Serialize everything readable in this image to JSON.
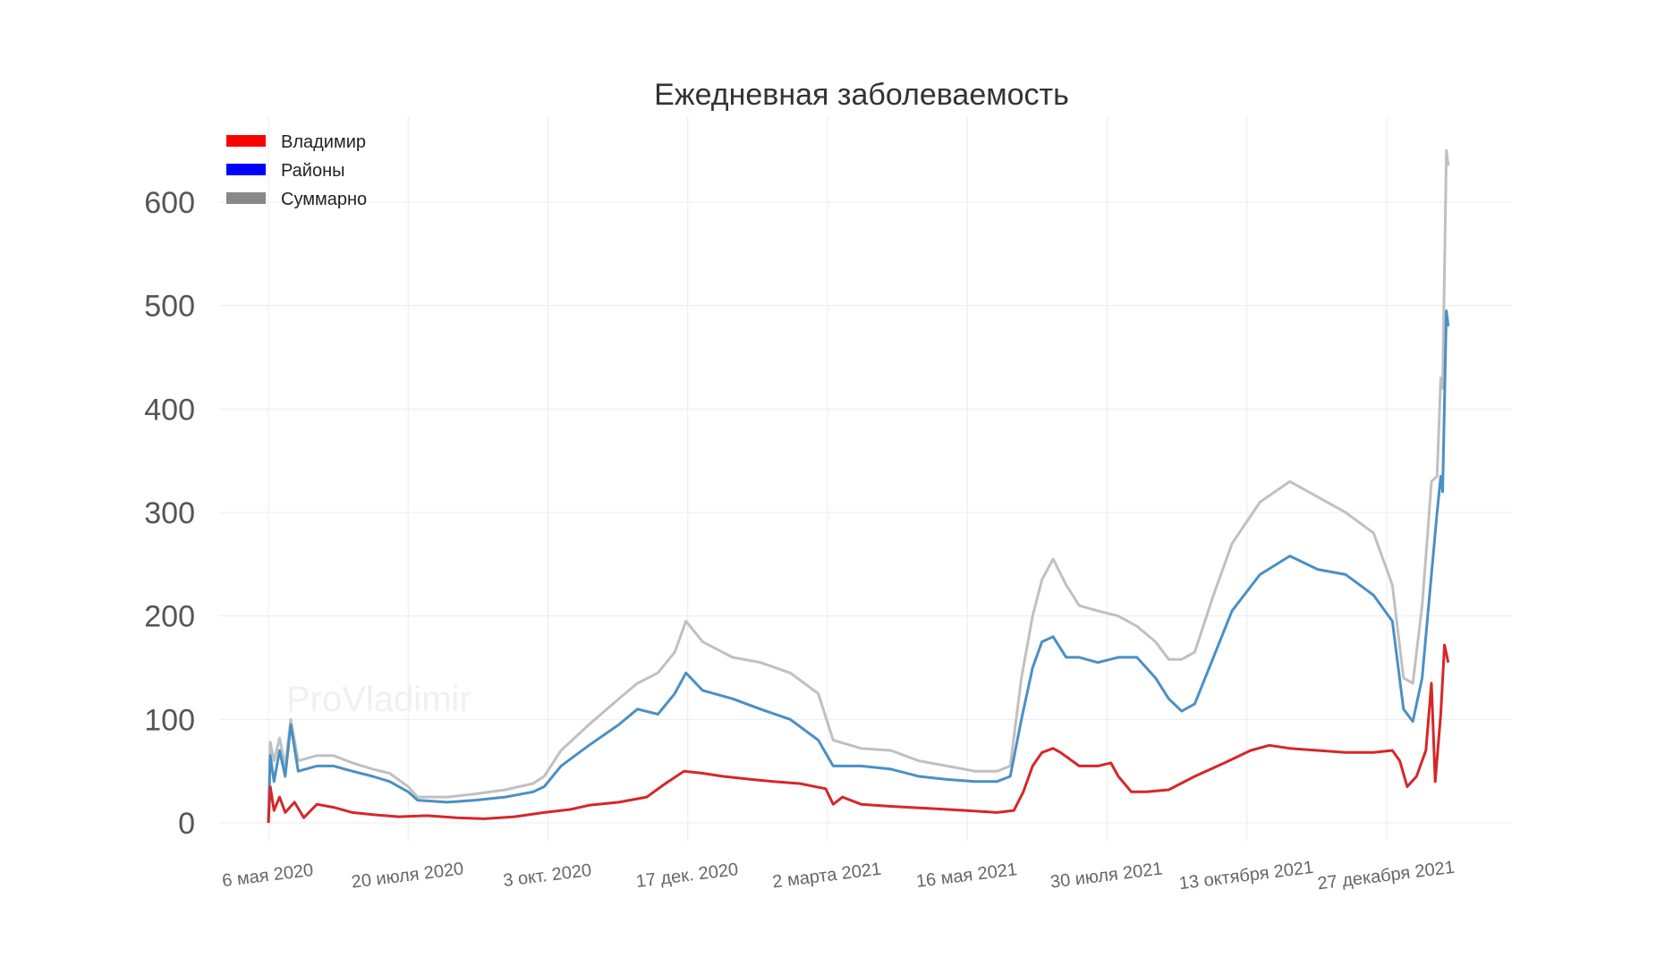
{
  "chart_data": {
    "type": "line",
    "title": "Ежедневная заболеваемость",
    "xlabel": "",
    "ylabel": "",
    "ylim": [
      -30,
      660
    ],
    "yticks": [
      0,
      100,
      200,
      300,
      400,
      500,
      600
    ],
    "xtick_labels": [
      "6 мая 2020",
      "20 июля 2020",
      "3 окт. 2020",
      "17 дек. 2020",
      "2 марта 2021",
      "16 мая 2021",
      "30 июля 2021",
      "13 октября 2021",
      "27 декабря 2021"
    ],
    "xtick_dates": [
      "2020-05-06",
      "2020-07-20",
      "2020-10-03",
      "2020-12-17",
      "2021-03-02",
      "2021-05-16",
      "2021-07-30",
      "2021-10-13",
      "2021-12-27"
    ],
    "xlim": [
      "2020-04-22",
      "2022-03-05"
    ],
    "grid": true,
    "legend_position": "top-left",
    "watermark": "ProVladimir",
    "series": [
      {
        "name": "Владимир",
        "color": "#d62728",
        "legend_color": "#ff0000",
        "points": [
          [
            "2020-05-06",
            0
          ],
          [
            "2020-05-07",
            35
          ],
          [
            "2020-05-09",
            12
          ],
          [
            "2020-05-12",
            25
          ],
          [
            "2020-05-15",
            10
          ],
          [
            "2020-05-20",
            20
          ],
          [
            "2020-05-25",
            5
          ],
          [
            "2020-06-01",
            18
          ],
          [
            "2020-06-10",
            15
          ],
          [
            "2020-06-20",
            10
          ],
          [
            "2020-07-01",
            8
          ],
          [
            "2020-07-15",
            6
          ],
          [
            "2020-07-30",
            7
          ],
          [
            "2020-08-15",
            5
          ],
          [
            "2020-08-30",
            4
          ],
          [
            "2020-09-15",
            6
          ],
          [
            "2020-10-01",
            10
          ],
          [
            "2020-10-15",
            13
          ],
          [
            "2020-10-25",
            17
          ],
          [
            "2020-11-10",
            20
          ],
          [
            "2020-11-25",
            25
          ],
          [
            "2020-12-05",
            38
          ],
          [
            "2020-12-15",
            50
          ],
          [
            "2020-12-25",
            48
          ],
          [
            "2021-01-05",
            45
          ],
          [
            "2021-01-20",
            42
          ],
          [
            "2021-02-01",
            40
          ],
          [
            "2021-02-15",
            38
          ],
          [
            "2021-03-01",
            33
          ],
          [
            "2021-03-05",
            18
          ],
          [
            "2021-03-10",
            25
          ],
          [
            "2021-03-20",
            18
          ],
          [
            "2021-04-05",
            16
          ],
          [
            "2021-04-25",
            14
          ],
          [
            "2021-05-15",
            12
          ],
          [
            "2021-06-01",
            10
          ],
          [
            "2021-06-10",
            12
          ],
          [
            "2021-06-15",
            30
          ],
          [
            "2021-06-20",
            55
          ],
          [
            "2021-06-25",
            68
          ],
          [
            "2021-07-01",
            72
          ],
          [
            "2021-07-05",
            68
          ],
          [
            "2021-07-15",
            55
          ],
          [
            "2021-07-25",
            55
          ],
          [
            "2021-08-01",
            58
          ],
          [
            "2021-08-05",
            45
          ],
          [
            "2021-08-12",
            30
          ],
          [
            "2021-08-20",
            30
          ],
          [
            "2021-09-01",
            32
          ],
          [
            "2021-09-15",
            45
          ],
          [
            "2021-10-01",
            58
          ],
          [
            "2021-10-15",
            70
          ],
          [
            "2021-10-25",
            75
          ],
          [
            "2021-11-05",
            72
          ],
          [
            "2021-11-20",
            70
          ],
          [
            "2021-12-05",
            68
          ],
          [
            "2021-12-20",
            68
          ],
          [
            "2021-12-30",
            70
          ],
          [
            "2022-01-03",
            60
          ],
          [
            "2022-01-07",
            35
          ],
          [
            "2022-01-12",
            45
          ],
          [
            "2022-01-17",
            70
          ],
          [
            "2022-01-20",
            135
          ],
          [
            "2022-01-22",
            40
          ],
          [
            "2022-01-25",
            105
          ],
          [
            "2022-01-27",
            172
          ],
          [
            "2022-01-29",
            155
          ]
        ]
      },
      {
        "name": "Районы",
        "color": "#4a90c4",
        "legend_color": "#0000ff",
        "points": [
          [
            "2020-05-06",
            0
          ],
          [
            "2020-05-07",
            65
          ],
          [
            "2020-05-09",
            40
          ],
          [
            "2020-05-12",
            70
          ],
          [
            "2020-05-15",
            45
          ],
          [
            "2020-05-18",
            95
          ],
          [
            "2020-05-22",
            50
          ],
          [
            "2020-06-01",
            55
          ],
          [
            "2020-06-10",
            55
          ],
          [
            "2020-06-20",
            50
          ],
          [
            "2020-07-01",
            45
          ],
          [
            "2020-07-10",
            40
          ],
          [
            "2020-07-20",
            30
          ],
          [
            "2020-07-25",
            22
          ],
          [
            "2020-08-10",
            20
          ],
          [
            "2020-08-25",
            22
          ],
          [
            "2020-09-10",
            25
          ],
          [
            "2020-09-25",
            30
          ],
          [
            "2020-10-01",
            35
          ],
          [
            "2020-10-10",
            55
          ],
          [
            "2020-10-25",
            75
          ],
          [
            "2020-11-10",
            95
          ],
          [
            "2020-11-20",
            110
          ],
          [
            "2020-12-01",
            105
          ],
          [
            "2020-12-10",
            125
          ],
          [
            "2020-12-16",
            145
          ],
          [
            "2020-12-25",
            128
          ],
          [
            "2021-01-10",
            120
          ],
          [
            "2021-01-25",
            110
          ],
          [
            "2021-02-10",
            100
          ],
          [
            "2021-02-25",
            80
          ],
          [
            "2021-03-05",
            55
          ],
          [
            "2021-03-20",
            55
          ],
          [
            "2021-04-05",
            52
          ],
          [
            "2021-04-20",
            45
          ],
          [
            "2021-05-05",
            42
          ],
          [
            "2021-05-20",
            40
          ],
          [
            "2021-06-01",
            40
          ],
          [
            "2021-06-08",
            45
          ],
          [
            "2021-06-14",
            100
          ],
          [
            "2021-06-20",
            150
          ],
          [
            "2021-06-25",
            175
          ],
          [
            "2021-07-01",
            180
          ],
          [
            "2021-07-08",
            160
          ],
          [
            "2021-07-15",
            160
          ],
          [
            "2021-07-25",
            155
          ],
          [
            "2021-08-05",
            160
          ],
          [
            "2021-08-15",
            160
          ],
          [
            "2021-08-25",
            140
          ],
          [
            "2021-09-01",
            120
          ],
          [
            "2021-09-08",
            108
          ],
          [
            "2021-09-15",
            115
          ],
          [
            "2021-09-25",
            160
          ],
          [
            "2021-10-05",
            205
          ],
          [
            "2021-10-20",
            240
          ],
          [
            "2021-11-05",
            258
          ],
          [
            "2021-11-20",
            245
          ],
          [
            "2021-12-05",
            240
          ],
          [
            "2021-12-20",
            220
          ],
          [
            "2021-12-30",
            195
          ],
          [
            "2022-01-05",
            110
          ],
          [
            "2022-01-10",
            98
          ],
          [
            "2022-01-15",
            140
          ],
          [
            "2022-01-18",
            200
          ],
          [
            "2022-01-20",
            240
          ],
          [
            "2022-01-23",
            300
          ],
          [
            "2022-01-25",
            335
          ],
          [
            "2022-01-26",
            320
          ],
          [
            "2022-01-28",
            495
          ],
          [
            "2022-01-29",
            480
          ]
        ]
      },
      {
        "name": "Суммарно",
        "color": "#c0c0c0",
        "legend_color": "#888888",
        "points": [
          [
            "2020-05-06",
            0
          ],
          [
            "2020-05-07",
            78
          ],
          [
            "2020-05-09",
            60
          ],
          [
            "2020-05-12",
            82
          ],
          [
            "2020-05-15",
            55
          ],
          [
            "2020-05-18",
            100
          ],
          [
            "2020-05-22",
            60
          ],
          [
            "2020-06-01",
            65
          ],
          [
            "2020-06-10",
            65
          ],
          [
            "2020-06-20",
            58
          ],
          [
            "2020-07-01",
            52
          ],
          [
            "2020-07-10",
            48
          ],
          [
            "2020-07-20",
            35
          ],
          [
            "2020-07-25",
            25
          ],
          [
            "2020-08-10",
            25
          ],
          [
            "2020-08-25",
            28
          ],
          [
            "2020-09-10",
            32
          ],
          [
            "2020-09-25",
            38
          ],
          [
            "2020-10-01",
            45
          ],
          [
            "2020-10-10",
            70
          ],
          [
            "2020-10-25",
            95
          ],
          [
            "2020-11-10",
            120
          ],
          [
            "2020-11-20",
            135
          ],
          [
            "2020-12-01",
            145
          ],
          [
            "2020-12-10",
            165
          ],
          [
            "2020-12-16",
            195
          ],
          [
            "2020-12-25",
            175
          ],
          [
            "2021-01-10",
            160
          ],
          [
            "2021-01-25",
            155
          ],
          [
            "2021-02-10",
            145
          ],
          [
            "2021-02-25",
            125
          ],
          [
            "2021-03-05",
            80
          ],
          [
            "2021-03-20",
            72
          ],
          [
            "2021-04-05",
            70
          ],
          [
            "2021-04-20",
            60
          ],
          [
            "2021-05-05",
            55
          ],
          [
            "2021-05-20",
            50
          ],
          [
            "2021-06-01",
            50
          ],
          [
            "2021-06-08",
            55
          ],
          [
            "2021-06-14",
            140
          ],
          [
            "2021-06-20",
            200
          ],
          [
            "2021-06-25",
            235
          ],
          [
            "2021-07-01",
            255
          ],
          [
            "2021-07-08",
            230
          ],
          [
            "2021-07-15",
            210
          ],
          [
            "2021-07-25",
            205
          ],
          [
            "2021-08-05",
            200
          ],
          [
            "2021-08-15",
            190
          ],
          [
            "2021-08-25",
            175
          ],
          [
            "2021-09-01",
            158
          ],
          [
            "2021-09-08",
            158
          ],
          [
            "2021-09-15",
            165
          ],
          [
            "2021-09-25",
            220
          ],
          [
            "2021-10-05",
            270
          ],
          [
            "2021-10-20",
            310
          ],
          [
            "2021-11-05",
            330
          ],
          [
            "2021-11-20",
            315
          ],
          [
            "2021-12-05",
            300
          ],
          [
            "2021-12-20",
            280
          ],
          [
            "2021-12-30",
            230
          ],
          [
            "2022-01-05",
            140
          ],
          [
            "2022-01-10",
            135
          ],
          [
            "2022-01-15",
            210
          ],
          [
            "2022-01-18",
            280
          ],
          [
            "2022-01-20",
            330
          ],
          [
            "2022-01-23",
            335
          ],
          [
            "2022-01-25",
            430
          ],
          [
            "2022-01-26",
            420
          ],
          [
            "2022-01-28",
            650
          ],
          [
            "2022-01-29",
            635
          ]
        ]
      }
    ]
  }
}
